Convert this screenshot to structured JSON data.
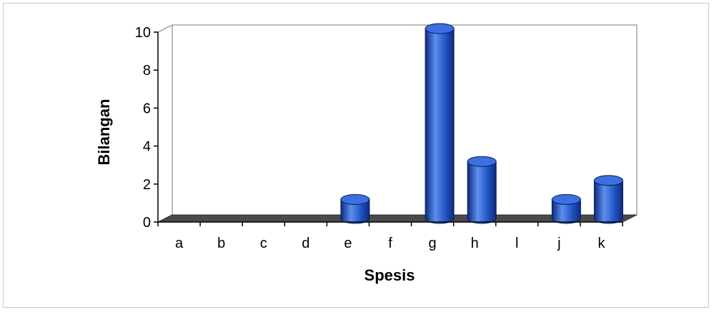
{
  "chart_data": {
    "type": "bar",
    "style": "3d-cylinder",
    "title": "",
    "xlabel": "Spesis",
    "ylabel": "Bilangan",
    "categories": [
      "a",
      "b",
      "c",
      "d",
      "e",
      "f",
      "g",
      "h",
      "l",
      "j",
      "k"
    ],
    "values": [
      0,
      0,
      0,
      0,
      1,
      0,
      10,
      3,
      0,
      1,
      2
    ],
    "ylim": [
      0,
      10
    ],
    "yticks": [
      "0",
      "2",
      "4",
      "6",
      "8",
      "10"
    ],
    "grid": false,
    "legend": "none",
    "colors": {
      "bar": "#2255c4",
      "bar_dark": "#0d2a7a",
      "bar_light": "#5d8ff0",
      "floor": "#4a4a4a",
      "axis": "#000000"
    }
  }
}
